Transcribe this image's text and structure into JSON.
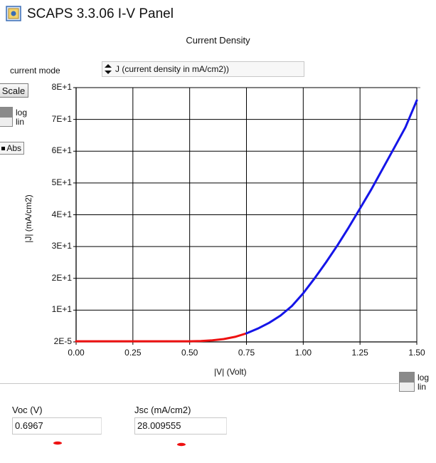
{
  "window": {
    "title": "SCAPS 3.3.06 I-V Panel"
  },
  "panel": {
    "title": "Current Density"
  },
  "current_mode": {
    "label": "current mode",
    "selected": "J (current density in mA/cm2))"
  },
  "controls": {
    "scale_button": "Scale",
    "y_log": "log",
    "y_lin": "lin",
    "abs_button": "Abs",
    "x_log": "log",
    "x_lin": "lin"
  },
  "results": {
    "voc_label": "Voc (V)",
    "voc_value": "0.6967",
    "jsc_label": "Jsc (mA/cm2)",
    "jsc_value": "28.009555"
  },
  "colors": {
    "low_segment": "#ee1111",
    "high_segment": "#1515e8",
    "grid": "#000000",
    "toggle_on": "#8a8a8a"
  },
  "chart_data": {
    "type": "line",
    "xlabel": "|V| (Volt)",
    "ylabel": "|J| (mA/cm2)",
    "xlim": [
      0,
      1.5
    ],
    "ylim": [
      0,
      80
    ],
    "x_ticks": [
      {
        "value": 0,
        "label": "0.00"
      },
      {
        "value": 0.25,
        "label": "0.25"
      },
      {
        "value": 0.5,
        "label": "0.50"
      },
      {
        "value": 0.75,
        "label": "0.75"
      },
      {
        "value": 1.0,
        "label": "1.00"
      },
      {
        "value": 1.25,
        "label": "1.25"
      },
      {
        "value": 1.5,
        "label": "1.50"
      }
    ],
    "y_ticks": [
      {
        "value": 0,
        "label": "2E-5"
      },
      {
        "value": 10,
        "label": "1E+1"
      },
      {
        "value": 20,
        "label": "2E+1"
      },
      {
        "value": 30,
        "label": "3E+1"
      },
      {
        "value": 40,
        "label": "4E+1"
      },
      {
        "value": 50,
        "label": "5E+1"
      },
      {
        "value": 60,
        "label": "6E+1"
      },
      {
        "value": 70,
        "label": "7E+1"
      },
      {
        "value": 80,
        "label": "8E+1"
      }
    ],
    "grid": true,
    "series": [
      {
        "color": "#ee1111",
        "x": [
          0,
          0.1,
          0.2,
          0.3,
          0.4,
          0.5,
          0.55,
          0.6,
          0.65,
          0.7,
          0.75
        ],
        "y": [
          0.2,
          0.2,
          0.2,
          0.2,
          0.2,
          0.2,
          0.3,
          0.5,
          0.9,
          1.6,
          2.7
        ]
      },
      {
        "color": "#1515e8",
        "x": [
          0.75,
          0.8,
          0.85,
          0.9,
          0.95,
          1.0,
          1.05,
          1.1,
          1.15,
          1.2,
          1.25,
          1.3,
          1.35,
          1.4,
          1.45,
          1.5
        ],
        "y": [
          2.7,
          4.2,
          6.0,
          8.3,
          11.3,
          15.3,
          20.0,
          25.0,
          30.3,
          36.0,
          42.0,
          48.0,
          54.5,
          61.0,
          67.5,
          76.0
        ]
      }
    ]
  }
}
